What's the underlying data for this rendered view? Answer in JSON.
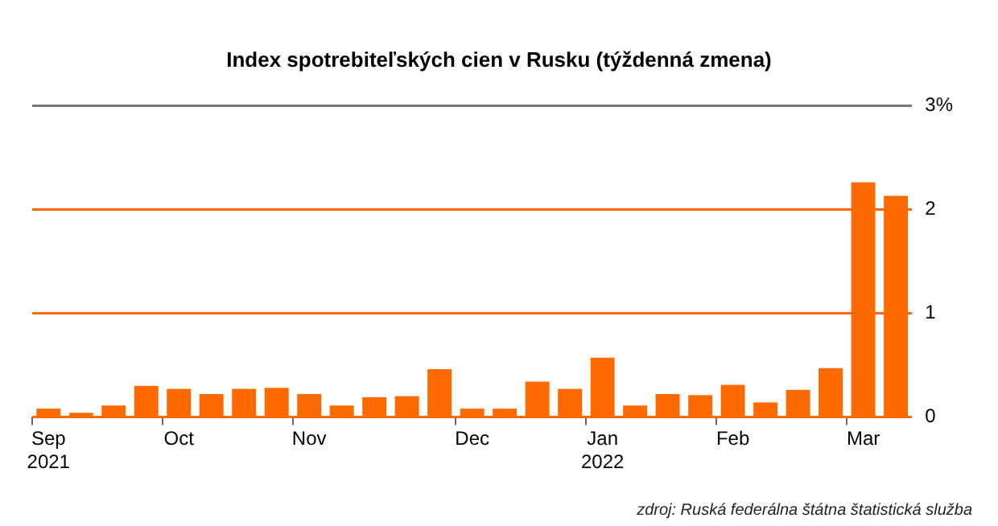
{
  "chart_data": {
    "type": "bar",
    "title": "Index spotrebiteľských cien v Rusku (týždenná zmena)",
    "categories": [
      "Sep\n2021",
      null,
      null,
      null,
      "Oct",
      null,
      null,
      null,
      "Nov",
      null,
      null,
      null,
      null,
      "Dec",
      null,
      null,
      null,
      "Jan\n2022",
      null,
      null,
      null,
      "Feb",
      null,
      null,
      null,
      "Mar",
      null
    ],
    "values": [
      0.08,
      0.04,
      0.11,
      0.3,
      0.27,
      0.22,
      0.27,
      0.28,
      0.22,
      0.11,
      0.19,
      0.2,
      0.46,
      0.08,
      0.08,
      0.34,
      0.27,
      0.57,
      0.11,
      0.22,
      0.21,
      0.31,
      0.14,
      0.26,
      0.47,
      2.26,
      2.13
    ],
    "color": "#ff6a00",
    "ylim": [
      0,
      3
    ],
    "yticks": [
      0,
      1,
      2,
      {
        "value": 3,
        "label": "3%"
      }
    ],
    "grid": "y",
    "annotations": [
      "zdroj: Ruská federálna štátna štatistická služba"
    ]
  }
}
